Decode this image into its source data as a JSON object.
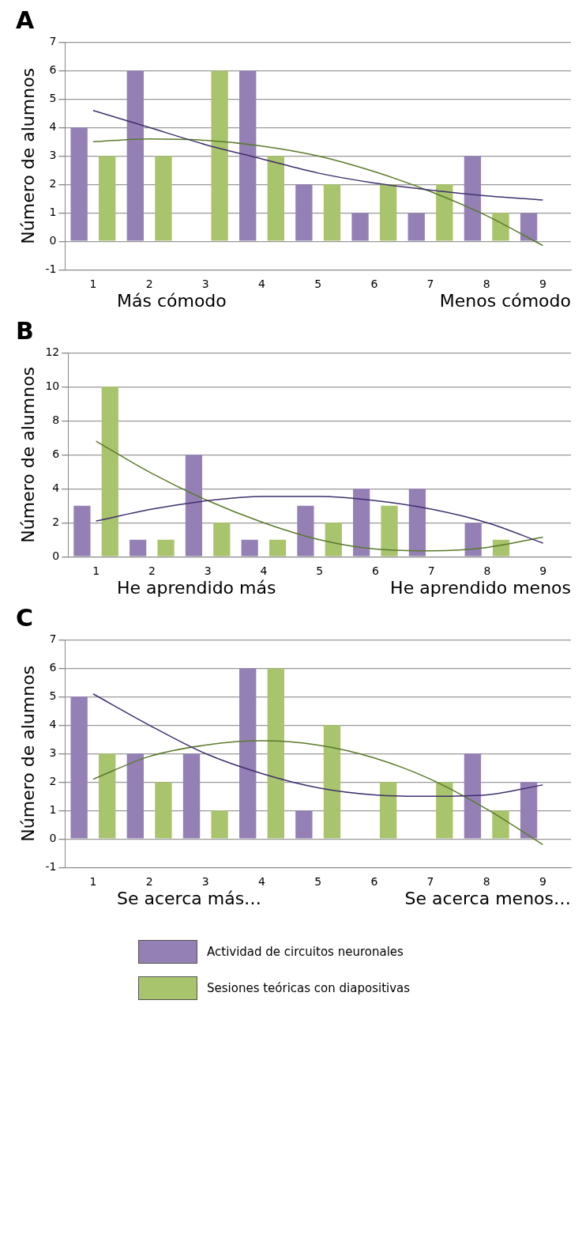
{
  "chart_data": [
    {
      "type": "bar",
      "title": "A",
      "ylabel": "Número de alumnos",
      "categories": [
        "1",
        "2",
        "3",
        "4",
        "5",
        "6",
        "7",
        "8",
        "9"
      ],
      "ylim": [
        -1,
        7
      ],
      "yticks": [
        -1,
        0,
        1,
        2,
        3,
        4,
        5,
        6,
        7
      ],
      "grid": "y",
      "annotations": [
        "Más cómodo",
        "Menos cómodo"
      ],
      "series": [
        {
          "color": "#9580b6",
          "values": [
            4,
            6,
            0,
            6,
            2,
            1,
            1,
            3,
            1
          ]
        },
        {
          "color": "#a8c46c",
          "values": [
            3,
            3,
            6,
            3,
            2,
            2,
            2,
            1,
            0
          ]
        },
        {
          "type": "line",
          "color": "#3f2f6e",
          "values": [
            4.6,
            4.0,
            3.4,
            2.9,
            2.4,
            2.05,
            1.8,
            1.6,
            1.45
          ]
        },
        {
          "type": "line",
          "color": "#5b7a2b",
          "values": [
            3.5,
            3.6,
            3.55,
            3.35,
            3.0,
            2.45,
            1.75,
            0.9,
            -0.15
          ]
        }
      ]
    },
    {
      "type": "bar",
      "title": "B",
      "ylabel": "Número de alumnos",
      "categories": [
        "1",
        "2",
        "3",
        "4",
        "5",
        "6",
        "7",
        "8",
        "9"
      ],
      "ylim": [
        0,
        12
      ],
      "yticks": [
        0,
        2,
        4,
        6,
        8,
        10,
        12
      ],
      "grid": "y",
      "annotations": [
        "He aprendido más",
        "He aprendido menos"
      ],
      "series": [
        {
          "color": "#9580b6",
          "values": [
            3,
            1,
            6,
            1,
            3,
            4,
            4,
            2,
            0
          ]
        },
        {
          "color": "#a8c46c",
          "values": [
            10,
            1,
            2,
            1,
            2,
            3,
            0,
            1,
            0
          ]
        },
        {
          "type": "line",
          "color": "#3f2f6e",
          "values": [
            2.1,
            2.8,
            3.3,
            3.55,
            3.55,
            3.3,
            2.8,
            2.0,
            0.8
          ]
        },
        {
          "type": "line",
          "color": "#5b7a2b",
          "values": [
            6.8,
            4.9,
            3.3,
            2.0,
            1.0,
            0.45,
            0.35,
            0.55,
            1.15
          ]
        }
      ]
    },
    {
      "type": "bar",
      "title": "C",
      "ylabel": "Número de alumnos",
      "categories": [
        "1",
        "2",
        "3",
        "4",
        "5",
        "6",
        "7",
        "8",
        "9"
      ],
      "ylim": [
        -1,
        7
      ],
      "yticks": [
        -1,
        0,
        1,
        2,
        3,
        4,
        5,
        6,
        7
      ],
      "grid": "y",
      "legend": "bottom",
      "annotations": [
        "Se acerca más…",
        "Se acerca menos…"
      ],
      "series": [
        {
          "name": "Actividad de circuitos neuronales",
          "color": "#9580b6",
          "values": [
            5,
            3,
            3,
            6,
            1,
            0,
            0,
            3,
            2
          ]
        },
        {
          "name": "Sesiones teóricas con diapositivas",
          "color": "#a8c46c",
          "values": [
            3,
            2,
            1,
            6,
            4,
            2,
            2,
            1,
            0
          ]
        },
        {
          "type": "line",
          "color": "#3f2f6e",
          "values": [
            5.1,
            4.0,
            3.0,
            2.3,
            1.8,
            1.55,
            1.5,
            1.55,
            1.9
          ]
        },
        {
          "type": "line",
          "color": "#5b7a2b",
          "values": [
            2.1,
            2.9,
            3.3,
            3.45,
            3.3,
            2.85,
            2.1,
            1.05,
            -0.2
          ]
        }
      ]
    }
  ]
}
